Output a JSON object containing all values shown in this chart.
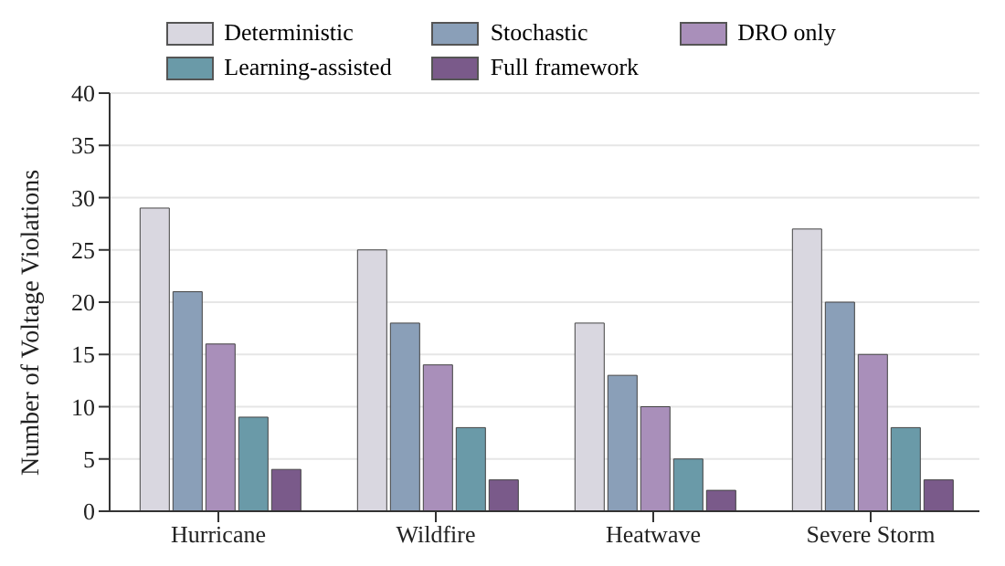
{
  "chart_data": {
    "type": "bar",
    "ylabel": "Number of Voltage Violations",
    "categories": [
      "Hurricane",
      "Wildfire",
      "Heatwave",
      "Severe Storm"
    ],
    "series": [
      {
        "name": "Deterministic",
        "color": "#d9d7e0",
        "values": [
          29,
          25,
          18,
          27
        ]
      },
      {
        "name": "Stochastic",
        "color": "#8a9fb8",
        "values": [
          21,
          18,
          13,
          20
        ]
      },
      {
        "name": "DRO only",
        "color": "#a98fba",
        "values": [
          16,
          14,
          10,
          15
        ]
      },
      {
        "name": "Learning-assisted",
        "color": "#6a9aa8",
        "values": [
          9,
          8,
          5,
          8
        ]
      },
      {
        "name": "Full framework",
        "color": "#7a5a8a",
        "values": [
          4,
          3,
          2,
          3
        ]
      }
    ],
    "ylim": [
      0,
      40
    ],
    "yticks": [
      0,
      5,
      10,
      15,
      20,
      25,
      30,
      35,
      40
    ],
    "grid": "y",
    "legend": "top"
  }
}
